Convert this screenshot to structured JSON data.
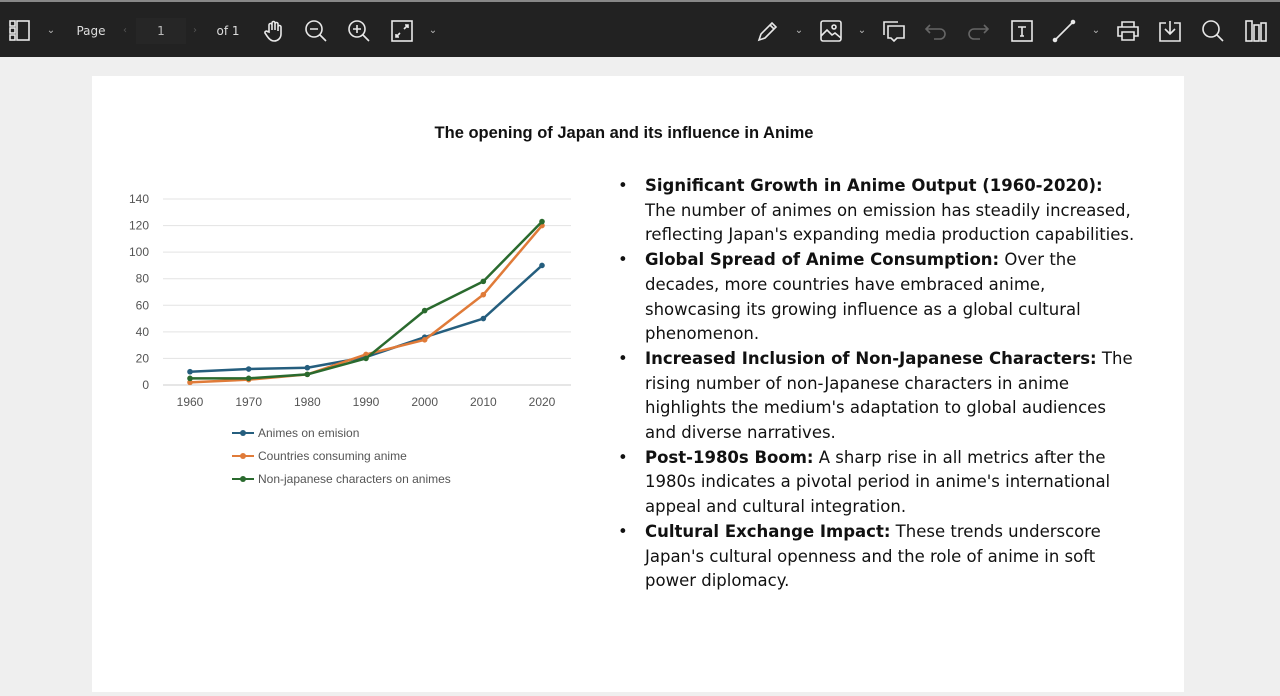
{
  "toolbar": {
    "page_label": "Page",
    "page_value": "1",
    "page_total": "of 1",
    "icons_left": [
      "sidebar-toggle-icon",
      "hand-pan-icon",
      "zoom-out-icon",
      "zoom-in-icon",
      "fit-page-icon"
    ],
    "icons_right": [
      "draw-pen-icon",
      "image-icon",
      "comment-icon",
      "undo-icon",
      "redo-icon",
      "text-box-icon",
      "line-icon",
      "print-icon",
      "download-icon",
      "search-icon",
      "bookmarks-icon"
    ]
  },
  "document": {
    "title": "The opening of Japan and its influence in Anime",
    "bullets": [
      {
        "bold": "Significant Growth in Anime Output (1960-2020):",
        "text": " The number of animes on emission has steadily increased, reflecting Japan's expanding media production capabilities."
      },
      {
        "bold": "Global Spread of Anime Consumption:",
        "text": " Over the decades, more countries have embraced anime, showcasing its growing influence as a global cultural phenomenon."
      },
      {
        "bold": "Increased Inclusion of Non-Japanese Characters:",
        "text": " The rising number of non-Japanese characters in anime highlights the medium's adaptation to global audiences and diverse narratives."
      },
      {
        "bold": "Post-1980s Boom:",
        "text": " A sharp rise in all metrics after the 1980s indicates a pivotal period in anime's international appeal and cultural integration."
      },
      {
        "bold": "Cultural Exchange Impact:",
        "text": " These trends underscore Japan's cultural openness and the role of anime in soft power diplomacy."
      }
    ]
  },
  "chart_data": {
    "type": "line",
    "title": "The opening of Japan and its influence in Anime",
    "categories": [
      "1960",
      "1970",
      "1980",
      "1990",
      "2000",
      "2010",
      "2020"
    ],
    "ylim": [
      0,
      140
    ],
    "yticks": [
      "0",
      "20",
      "40",
      "60",
      "80",
      "100",
      "120",
      "140"
    ],
    "grid": true,
    "legend": "bottom",
    "series": [
      {
        "name": "Animes on emision",
        "color": "#255e7e",
        "values": [
          10,
          12,
          13,
          21,
          36,
          50,
          90
        ]
      },
      {
        "name": "Countries consuming anime",
        "color": "#e07b39",
        "values": [
          2,
          4,
          8,
          23,
          34,
          68,
          120
        ]
      },
      {
        "name": "Non-japanese characters on animes",
        "color": "#2a6a2e",
        "values": [
          5,
          5,
          8,
          20,
          56,
          78,
          123
        ]
      }
    ]
  }
}
